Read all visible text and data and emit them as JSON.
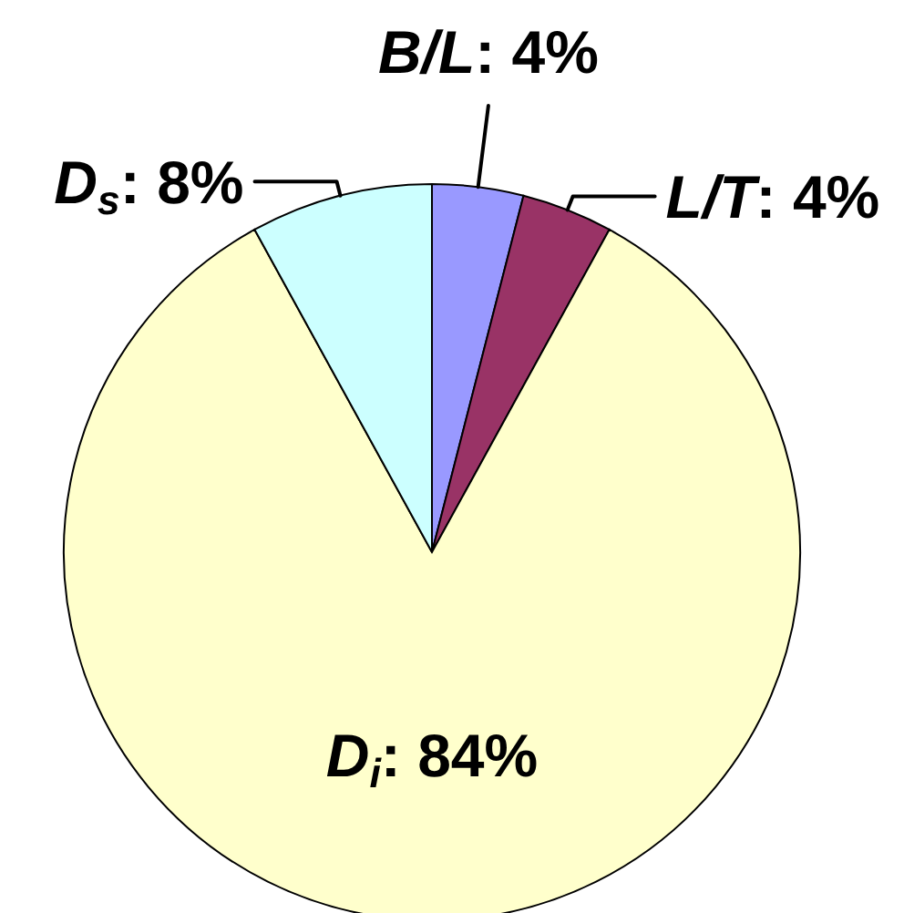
{
  "chart_data": {
    "type": "pie",
    "categories": [
      "B/L",
      "L/T",
      "D$_{i}$",
      "D$_{s}$"
    ],
    "values": [
      4,
      4,
      84,
      8
    ],
    "colors": [
      "#9999ff",
      "#993366",
      "#ffffcc",
      "#ccffff"
    ],
    "value_labels": [
      ": 4%",
      ": 4%",
      ": 84%",
      ": 8%"
    ]
  }
}
